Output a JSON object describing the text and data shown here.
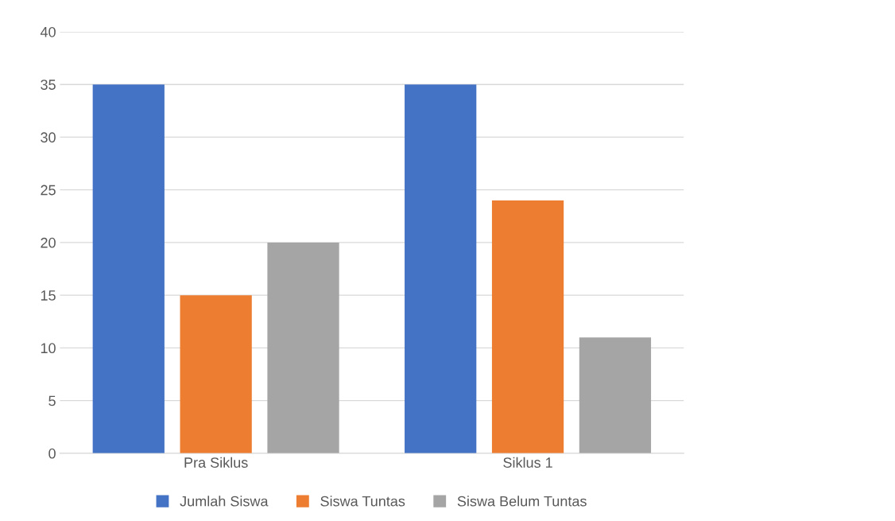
{
  "chart_data": {
    "type": "bar",
    "categories": [
      "Pra Siklus",
      "Siklus 1"
    ],
    "series": [
      {
        "name": "Jumlah Siswa",
        "color": "#4472c4",
        "values": [
          35,
          35
        ]
      },
      {
        "name": "Siswa Tuntas",
        "color": "#ed7d31",
        "values": [
          15,
          24
        ]
      },
      {
        "name": "Siswa Belum Tuntas",
        "color": "#a5a5a5",
        "values": [
          20,
          11
        ]
      }
    ],
    "ylim": [
      0,
      40
    ],
    "yticks": [
      0,
      5,
      10,
      15,
      20,
      25,
      30,
      35,
      40
    ],
    "grid": "y",
    "legend": "bottom"
  }
}
